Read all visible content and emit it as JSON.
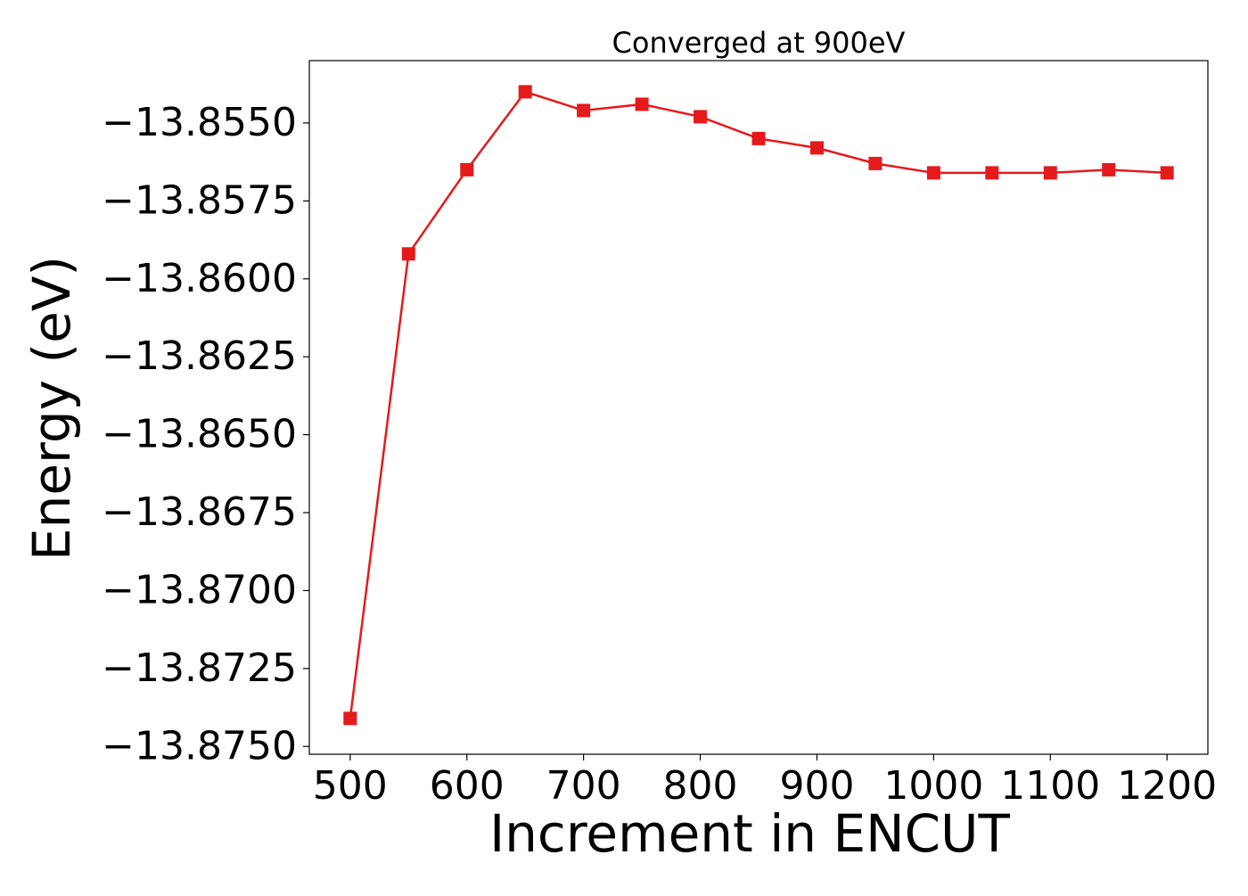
{
  "chart_data": {
    "type": "line",
    "title": "Converged at 900eV",
    "xlabel": "Increment in ENCUT",
    "ylabel": "Energy (eV)",
    "x": [
      500,
      550,
      600,
      650,
      700,
      750,
      800,
      850,
      900,
      950,
      1000,
      1050,
      1100,
      1150,
      1200
    ],
    "series": [
      {
        "values": [
          -13.8741,
          -13.8592,
          -13.8565,
          -13.854,
          -13.8546,
          -13.8544,
          -13.8548,
          -13.8555,
          -13.8558,
          -13.8563,
          -13.8566,
          -13.8566,
          -13.8566,
          -13.8565,
          -13.8566
        ],
        "color": "#e41a1c",
        "marker": "square"
      }
    ],
    "xticks": [
      500,
      600,
      700,
      800,
      900,
      1000,
      1100,
      1200
    ],
    "xtick_labels": [
      "500",
      "600",
      "700",
      "800",
      "900",
      "1000",
      "1100",
      "1200"
    ],
    "yticks": [
      -13.855,
      -13.8575,
      -13.86,
      -13.8625,
      -13.865,
      -13.8675,
      -13.87,
      -13.8725,
      -13.875
    ],
    "ytick_labels": [
      "−13.8550",
      "−13.8575",
      "−13.8600",
      "−13.8625",
      "−13.8650",
      "−13.8675",
      "−13.8700",
      "−13.8725",
      "−13.8750"
    ],
    "xlim": [
      465,
      1235
    ],
    "ylim": [
      -13.87525,
      -13.853
    ],
    "grid": false,
    "legend": "none"
  }
}
